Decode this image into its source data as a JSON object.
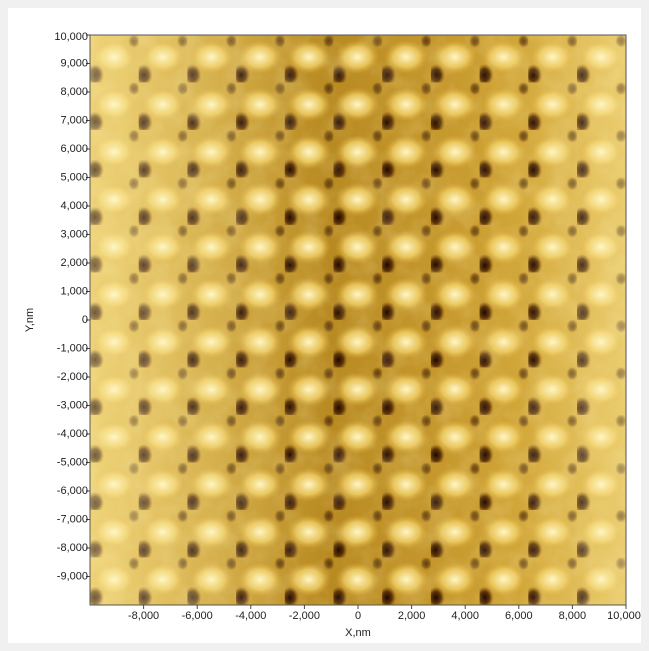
{
  "chart_data": {
    "type": "heatmap",
    "x_label": "X,nm",
    "y_label": "Y,nm",
    "xlim": [
      -10000,
      10000
    ],
    "ylim": [
      -10000,
      10000
    ],
    "xticks": [
      {
        "value": -8000,
        "label": "-8,000"
      },
      {
        "value": -6000,
        "label": "-6,000"
      },
      {
        "value": -4000,
        "label": "-4,000"
      },
      {
        "value": -2000,
        "label": "-2,000"
      },
      0,
      {
        "value": 2000,
        "label": "2,000"
      },
      {
        "value": 4000,
        "label": "4,000"
      },
      {
        "value": 6000,
        "label": "6,000"
      },
      {
        "value": 8000,
        "label": "8,000"
      },
      {
        "value": 10000,
        "label": "10,000"
      }
    ],
    "yticks": [
      {
        "value": -9000,
        "label": "-9,000"
      },
      {
        "value": -8000,
        "label": "-8,000"
      },
      {
        "value": -7000,
        "label": "-7,000"
      },
      {
        "value": -6000,
        "label": "-6,000"
      },
      {
        "value": -5000,
        "label": "-5,000"
      },
      {
        "value": -4000,
        "label": "-4,000"
      },
      {
        "value": -3000,
        "label": "-3,000"
      },
      {
        "value": -2000,
        "label": "-2,000"
      },
      {
        "value": -1000,
        "label": "-1,000"
      },
      0,
      {
        "value": 1000,
        "label": "1,000"
      },
      {
        "value": 2000,
        "label": "2,000"
      },
      {
        "value": 3000,
        "label": "3,000"
      },
      {
        "value": 4000,
        "label": "4,000"
      },
      {
        "value": 5000,
        "label": "5,000"
      },
      {
        "value": 6000,
        "label": "6,000"
      },
      {
        "value": 7000,
        "label": "7,000"
      },
      {
        "value": 8000,
        "label": "8,000"
      },
      {
        "value": 9000,
        "label": "9,000"
      },
      {
        "value": 10000,
        "label": "10,000"
      }
    ]
  }
}
